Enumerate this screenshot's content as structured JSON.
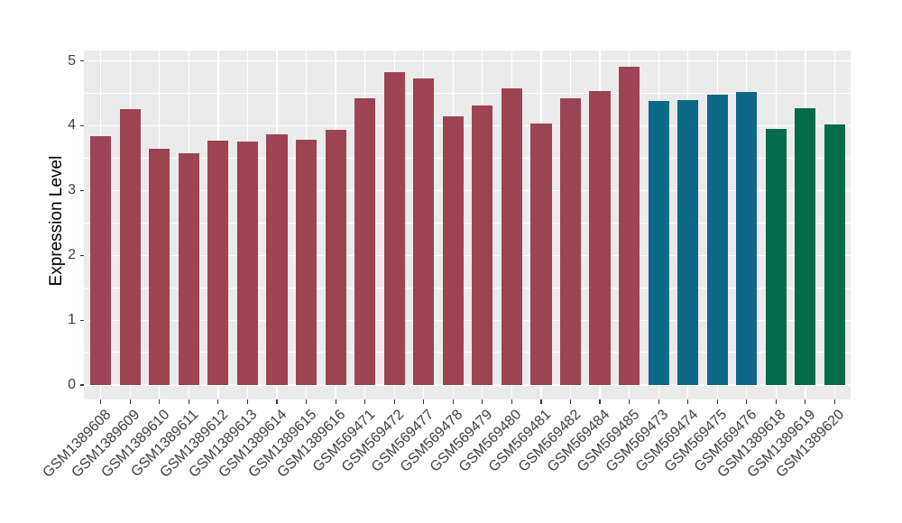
{
  "chart_data": {
    "type": "bar",
    "title": "",
    "xlabel": "",
    "ylabel": "Expression Level",
    "ylim": [
      0,
      5
    ],
    "yticks": [
      0,
      1,
      2,
      3,
      4,
      5
    ],
    "ytick_labels": [
      "0",
      "1",
      "2",
      "3",
      "4",
      "5"
    ],
    "grid": "on",
    "legend": "none",
    "panel_background": "#EBEBEB",
    "gridline_color": "#FFFFFF",
    "axis_text_color": "#404040",
    "axis_title_color": "#000000",
    "groups": [
      {
        "id": "group-1",
        "color": "#9C4453"
      },
      {
        "id": "group-2",
        "color": "#0C6987"
      },
      {
        "id": "group-3",
        "color": "#036B49"
      }
    ],
    "categories": [
      "GSM1389608",
      "GSM1389609",
      "GSM1389610",
      "GSM1389611",
      "GSM1389612",
      "GSM1389613",
      "GSM1389614",
      "GSM1389615",
      "GSM1389616",
      "GSM569471",
      "GSM569472",
      "GSM569477",
      "GSM569478",
      "GSM569479",
      "GSM569480",
      "GSM569481",
      "GSM569482",
      "GSM569484",
      "GSM569485",
      "GSM569473",
      "GSM569474",
      "GSM569475",
      "GSM569476",
      "GSM1389618",
      "GSM1389619",
      "GSM1389620"
    ],
    "bars": [
      {
        "label": "GSM1389608",
        "value": 3.84,
        "group": 0
      },
      {
        "label": "GSM1389609",
        "value": 4.25,
        "group": 0
      },
      {
        "label": "GSM1389610",
        "value": 3.65,
        "group": 0
      },
      {
        "label": "GSM1389611",
        "value": 3.57,
        "group": 0
      },
      {
        "label": "GSM1389612",
        "value": 3.77,
        "group": 0
      },
      {
        "label": "GSM1389613",
        "value": 3.75,
        "group": 0
      },
      {
        "label": "GSM1389614",
        "value": 3.87,
        "group": 0
      },
      {
        "label": "GSM1389615",
        "value": 3.79,
        "group": 0
      },
      {
        "label": "GSM1389616",
        "value": 3.93,
        "group": 0
      },
      {
        "label": "GSM569471",
        "value": 4.42,
        "group": 0
      },
      {
        "label": "GSM569472",
        "value": 4.82,
        "group": 0
      },
      {
        "label": "GSM569477",
        "value": 4.73,
        "group": 0
      },
      {
        "label": "GSM569478",
        "value": 4.15,
        "group": 0
      },
      {
        "label": "GSM569479",
        "value": 4.31,
        "group": 0
      },
      {
        "label": "GSM569480",
        "value": 4.58,
        "group": 0
      },
      {
        "label": "GSM569481",
        "value": 4.04,
        "group": 0
      },
      {
        "label": "GSM569482",
        "value": 4.42,
        "group": 0
      },
      {
        "label": "GSM569484",
        "value": 4.53,
        "group": 0
      },
      {
        "label": "GSM569485",
        "value": 4.91,
        "group": 0
      },
      {
        "label": "GSM569473",
        "value": 4.38,
        "group": 1
      },
      {
        "label": "GSM569474",
        "value": 4.4,
        "group": 1
      },
      {
        "label": "GSM569475",
        "value": 4.48,
        "group": 1
      },
      {
        "label": "GSM569476",
        "value": 4.52,
        "group": 1
      },
      {
        "label": "GSM1389618",
        "value": 3.95,
        "group": 2
      },
      {
        "label": "GSM1389619",
        "value": 4.27,
        "group": 2
      },
      {
        "label": "GSM1389620",
        "value": 4.02,
        "group": 2
      }
    ]
  }
}
